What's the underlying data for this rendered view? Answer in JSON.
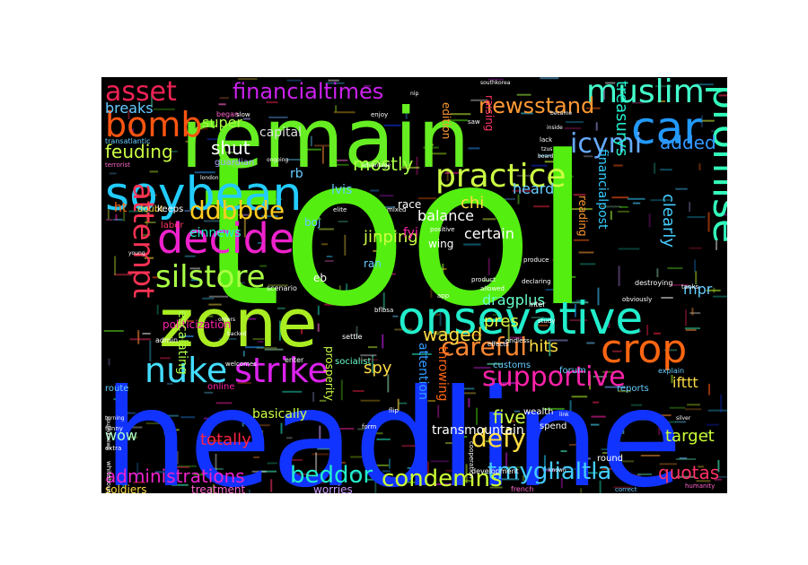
{
  "words": [
    {
      "text": "tool",
      "color": "#55ee11",
      "weight": 1.0
    },
    {
      "text": "headline",
      "color": "#1133ff",
      "weight": 0.95
    },
    {
      "text": "remain",
      "color": "#66ee22",
      "weight": 0.8
    },
    {
      "text": "zone",
      "color": "#aaee22",
      "weight": 0.7
    },
    {
      "text": "onsevative",
      "color": "#22eecc",
      "weight": 0.55
    },
    {
      "text": "soybean",
      "color": "#22ccff",
      "weight": 0.5
    },
    {
      "text": "decide",
      "color": "#ee22cc",
      "weight": 0.45
    },
    {
      "text": "car",
      "color": "#2299ff",
      "weight": 0.5
    },
    {
      "text": "promise",
      "color": "#33ffbb",
      "weight": 0.45
    },
    {
      "text": "crop",
      "color": "#ff6611",
      "weight": 0.45
    },
    {
      "text": "nuke",
      "color": "#44ddff",
      "weight": 0.4
    },
    {
      "text": "strike",
      "color": "#dd22ee",
      "weight": 0.4
    },
    {
      "text": "bomb",
      "color": "#ff5511",
      "weight": 0.38
    },
    {
      "text": "muslim",
      "color": "#44ffcc",
      "weight": 0.36
    },
    {
      "text": "practice",
      "color": "#ccff44",
      "weight": 0.36
    },
    {
      "text": "asset",
      "color": "#ee2255",
      "weight": 0.3
    },
    {
      "text": "financialtimes",
      "color": "#cc22ee",
      "weight": 0.26
    },
    {
      "text": "silstore",
      "color": "#aaff44",
      "weight": 0.34
    },
    {
      "text": "attempt",
      "color": "#ff3355",
      "weight": 0.33
    },
    {
      "text": "ddbbde",
      "color": "#ffcc22",
      "weight": 0.3
    },
    {
      "text": "icymi",
      "color": "#66aaff",
      "weight": 0.32
    },
    {
      "text": "supportive",
      "color": "#ff22aa",
      "weight": 0.3
    },
    {
      "text": "careful",
      "color": "#ff8833",
      "weight": 0.28
    },
    {
      "text": "tmyglialtla",
      "color": "#44ccff",
      "weight": 0.26
    },
    {
      "text": "beddor",
      "color": "#22eecc",
      "weight": 0.26
    },
    {
      "text": "condemns",
      "color": "#ccff33",
      "weight": 0.26
    },
    {
      "text": "defy",
      "color": "#ffdd44",
      "weight": 0.28
    },
    {
      "text": "newsstand",
      "color": "#ff9933",
      "weight": 0.24
    },
    {
      "text": "administrations",
      "color": "#ee22cc",
      "weight": 0.22
    },
    {
      "text": "quotas",
      "color": "#ff3366",
      "weight": 0.22
    },
    {
      "text": "feuding",
      "color": "#ccff44",
      "weight": 0.22
    },
    {
      "text": "shut",
      "color": "#ffffff",
      "weight": 0.22
    },
    {
      "text": "mostly",
      "color": "#aaff44",
      "weight": 0.2
    },
    {
      "text": "jinping",
      "color": "#ccff44",
      "weight": 0.2
    },
    {
      "text": "waged",
      "color": "#ffdd44",
      "weight": 0.2
    },
    {
      "text": "added",
      "color": "#3399ff",
      "weight": 0.2
    },
    {
      "text": "five",
      "color": "#ccff44",
      "weight": 0.2
    },
    {
      "text": "totally",
      "color": "#ff2244",
      "weight": 0.18
    },
    {
      "text": "wow",
      "color": "#aaffcc",
      "weight": 0.16
    },
    {
      "text": "target",
      "color": "#ccff33",
      "weight": 0.18
    },
    {
      "text": "hits",
      "color": "#ffdd44",
      "weight": 0.18
    },
    {
      "text": "pres",
      "color": "#ddff44",
      "weight": 0.18
    },
    {
      "text": "spy",
      "color": "#ffdd44",
      "weight": 0.18
    },
    {
      "text": "ifttt",
      "color": "#ffdd44",
      "weight": 0.16
    },
    {
      "text": "mpr",
      "color": "#66ccff",
      "weight": 0.16
    },
    {
      "text": "chi",
      "color": "#ffdd44",
      "weight": 0.18
    },
    {
      "text": "treasurys",
      "color": "#22eecc",
      "weight": 0.18
    },
    {
      "text": "clearly",
      "color": "#44ccff",
      "weight": 0.18
    },
    {
      "text": "dragplus",
      "color": "#66ffcc",
      "weight": 0.16
    },
    {
      "text": "balance",
      "color": "#ffffff",
      "weight": 0.16
    },
    {
      "text": "certain",
      "color": "#ffffff",
      "weight": 0.16
    },
    {
      "text": "heard",
      "color": "#66ccff",
      "weight": 0.16
    },
    {
      "text": "breaks",
      "color": "#66ccff",
      "weight": 0.16
    },
    {
      "text": "super",
      "color": "#aaff44",
      "weight": 0.16
    },
    {
      "text": "capital",
      "color": "#dddddd",
      "weight": 0.14
    },
    {
      "text": "einnews",
      "color": "#22eecc",
      "weight": 0.14
    },
    {
      "text": "politicization",
      "color": "#ff22aa",
      "weight": 0.12
    },
    {
      "text": "basically",
      "color": "#ccff44",
      "weight": 0.14
    },
    {
      "text": "transmountain",
      "color": "#ffffff",
      "weight": 0.14
    },
    {
      "text": "throwing",
      "color": "#ff6611",
      "weight": 0.14
    },
    {
      "text": "attention",
      "color": "#3399ff",
      "weight": 0.14
    },
    {
      "text": "prosperity",
      "color": "#ccff44",
      "weight": 0.12
    },
    {
      "text": "escalating",
      "color": "#aaff44",
      "weight": 0.14
    },
    {
      "text": "financialpost",
      "color": "#33ccff",
      "weight": 0.14
    },
    {
      "text": "reading",
      "color": "#ff9933",
      "weight": 0.12
    },
    {
      "text": "edition",
      "color": "#ff9933",
      "weight": 0.12
    },
    {
      "text": "raising",
      "color": "#ff3366",
      "weight": 0.12
    },
    {
      "text": "worries",
      "color": "#cc99ff",
      "weight": 0.12
    },
    {
      "text": "treatment",
      "color": "#ff66cc",
      "weight": 0.12
    },
    {
      "text": "soldiers",
      "color": "#ffdd44",
      "weight": 0.12
    },
    {
      "text": "route",
      "color": "#66ccff",
      "weight": 0.1
    },
    {
      "text": "online",
      "color": "#ff22aa",
      "weight": 0.1
    },
    {
      "text": "wing",
      "color": "#ffffff",
      "weight": 0.12
    },
    {
      "text": "ran",
      "color": "#66ccff",
      "weight": 0.12
    },
    {
      "text": "fyi",
      "color": "#ff22aa",
      "weight": 0.14
    },
    {
      "text": "lvis",
      "color": "#66ccff",
      "weight": 0.14
    },
    {
      "text": "boj",
      "color": "#66ccff",
      "weight": 0.12
    },
    {
      "text": "rb",
      "color": "#66ccff",
      "weight": 0.14
    },
    {
      "text": "eb",
      "color": "#ffffff",
      "weight": 0.12
    },
    {
      "text": "ht",
      "color": "#ff6611",
      "weight": 0.14
    },
    {
      "text": "labor",
      "color": "#ff3366",
      "weight": 0.1
    },
    {
      "text": "doubt",
      "color": "#ffdd44",
      "weight": 0.1
    },
    {
      "text": "keeps",
      "color": "#ffffff",
      "weight": 0.1
    },
    {
      "text": "guardian",
      "color": "#aaaaff",
      "weight": 0.1
    },
    {
      "text": "race",
      "color": "#ffffff",
      "weight": 0.12
    },
    {
      "text": "socialist",
      "color": "#66ffcc",
      "weight": 0.1
    },
    {
      "text": "customs",
      "color": "#66ccff",
      "weight": 0.1
    },
    {
      "text": "forum",
      "color": "#66ccff",
      "weight": 0.1
    },
    {
      "text": "reports",
      "color": "#66ccff",
      "weight": 0.1
    },
    {
      "text": "explain",
      "color": "#66ccff",
      "weight": 0.08
    },
    {
      "text": "wealth",
      "color": "#ffffff",
      "weight": 0.1
    },
    {
      "text": "spend",
      "color": "#ffffff",
      "weight": 0.1
    },
    {
      "text": "round",
      "color": "#ffffff",
      "weight": 0.1
    },
    {
      "text": "development",
      "color": "#ffffff",
      "weight": 0.08
    },
    {
      "text": "french",
      "color": "#ff66cc",
      "weight": 0.08
    },
    {
      "text": "humanity",
      "color": "#ff66cc",
      "weight": 0.07
    },
    {
      "text": "correct",
      "color": "#66ccff",
      "weight": 0.07
    },
    {
      "text": "transatlantic",
      "color": "#66ccff",
      "weight": 0.08
    },
    {
      "text": "terrorist",
      "color": "#ff66cc",
      "weight": 0.07
    },
    {
      "text": "began",
      "color": "#ff66cc",
      "weight": 0.08
    },
    {
      "text": "admin",
      "color": "#ffffff",
      "weight": 0.08
    },
    {
      "text": "enter",
      "color": "#ffffff",
      "weight": 0.08
    },
    {
      "text": "welcomes",
      "color": "#ffffff",
      "weight": 0.07
    },
    {
      "text": "settle",
      "color": "#ffffff",
      "weight": 0.08
    },
    {
      "text": "scenario",
      "color": "#ffffff",
      "weight": 0.08
    },
    {
      "text": "tanks",
      "color": "#ffffff",
      "weight": 0.07
    },
    {
      "text": "destroying",
      "color": "#ffffff",
      "weight": 0.08
    },
    {
      "text": "obviously",
      "color": "#ffffff",
      "weight": 0.07
    },
    {
      "text": "endless",
      "color": "#ffffff",
      "weight": 0.07
    },
    {
      "text": "effects",
      "color": "#ffffff",
      "weight": 0.07
    },
    {
      "text": "product",
      "color": "#ffffff",
      "weight": 0.07
    },
    {
      "text": "inter",
      "color": "#ffffff",
      "weight": 0.08
    },
    {
      "text": "produce",
      "color": "#ffffff",
      "weight": 0.07
    },
    {
      "text": "declaring",
      "color": "#ffffff",
      "weight": 0.07
    },
    {
      "text": "positive",
      "color": "#ffffff",
      "weight": 0.07
    },
    {
      "text": "mixed",
      "color": "#ffffff",
      "weight": 0.07
    },
    {
      "text": "elite",
      "color": "#ffffff",
      "weight": 0.07
    },
    {
      "text": "whitehouse",
      "color": "#ffffff",
      "weight": 0.07
    },
    {
      "text": "sputniknews",
      "color": "#ffffff",
      "weight": 0.06
    },
    {
      "text": "cooperation",
      "color": "#ffffff",
      "weight": 0.07
    },
    {
      "text": "flip",
      "color": "#ffffff",
      "weight": 0.07
    },
    {
      "text": "form",
      "color": "#ffffff",
      "weight": 0.07
    },
    {
      "text": "bflbsa",
      "color": "#ffffff",
      "weight": 0.07
    },
    {
      "text": "app",
      "color": "#ffffff",
      "weight": 0.07
    },
    {
      "text": "allowed",
      "color": "#ffffff",
      "weight": 0.07
    },
    {
      "text": "study",
      "color": "#ffffff",
      "weight": 0.07
    },
    {
      "text": "funny",
      "color": "#ffffff",
      "weight": 0.07
    },
    {
      "text": "turning",
      "color": "#ffffff",
      "weight": 0.06
    },
    {
      "text": "extra",
      "color": "#ffffff",
      "weight": 0.07
    },
    {
      "text": "slow",
      "color": "#ffffff",
      "weight": 0.07
    },
    {
      "text": "enjoy",
      "color": "#ffffff",
      "weight": 0.07
    },
    {
      "text": "saw",
      "color": "#ffffff",
      "weight": 0.07
    },
    {
      "text": "lack",
      "color": "#ffffff",
      "weight": 0.07
    },
    {
      "text": "advantage",
      "color": "#ffffff",
      "weight": 0.06
    },
    {
      "text": "young",
      "color": "#ffffff",
      "weight": 0.06
    },
    {
      "text": "london",
      "color": "#ffffff",
      "weight": 0.06
    },
    {
      "text": "nip",
      "color": "#ffffff",
      "weight": 0.06
    },
    {
      "text": "ongoing",
      "color": "#ffffff",
      "weight": 0.06
    },
    {
      "text": "orders",
      "color": "#ffffff",
      "weight": 0.06
    },
    {
      "text": "backed",
      "color": "#ffffff",
      "weight": 0.06
    },
    {
      "text": "board",
      "color": "#ffffff",
      "weight": 0.06
    },
    {
      "text": "inside",
      "color": "#ffffff",
      "weight": 0.06
    },
    {
      "text": "became",
      "color": "#ffffff",
      "weight": 0.06
    },
    {
      "text": "tzus",
      "color": "#ffffff",
      "weight": 0.06
    },
    {
      "text": "link",
      "color": "#ffffff",
      "weight": 0.06
    },
    {
      "text": "known",
      "color": "#ffffff",
      "weight": 0.06
    },
    {
      "text": "silver",
      "color": "#ffffff",
      "weight": 0.06
    },
    {
      "text": "southkorea",
      "color": "#ffffff",
      "weight": 0.06
    }
  ]
}
